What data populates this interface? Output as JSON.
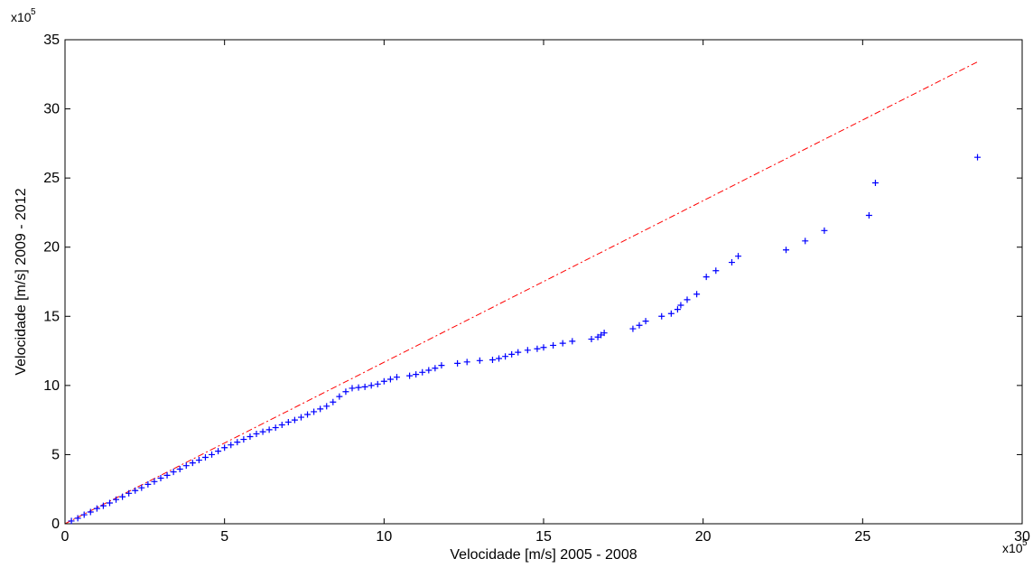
{
  "chart_data": {
    "type": "scatter",
    "title": "",
    "xlabel": "Velocidade [m/s] 2005 - 2008",
    "ylabel": "Velocidade [m/s] 2009 - 2012",
    "x_multiplier": {
      "base": "x10",
      "exp": "5"
    },
    "y_multiplier": {
      "base": "x10",
      "exp": "5"
    },
    "xlim": [
      0,
      30
    ],
    "ylim": [
      0,
      35
    ],
    "xticks": [
      0,
      5,
      10,
      15,
      20,
      25,
      30
    ],
    "yticks": [
      0,
      5,
      10,
      15,
      20,
      25,
      30,
      35
    ],
    "xtick_labels": [
      "0",
      "5",
      "10",
      "15",
      "20",
      "25",
      "30"
    ],
    "ytick_labels": [
      "0",
      "5",
      "10",
      "15",
      "20",
      "25",
      "30",
      "35"
    ],
    "grid": false,
    "colors": {
      "points": "#0000ff",
      "reference_line": "#ff0000",
      "axis": "#000000"
    },
    "reference_line": {
      "style": "dash-dot",
      "x": [
        0,
        28.6
      ],
      "y": [
        0,
        33.4
      ]
    },
    "series": [
      {
        "marker": "plus",
        "x": [
          0.2,
          0.4,
          0.6,
          0.8,
          1.0,
          1.2,
          1.4,
          1.6,
          1.8,
          2.0,
          2.2,
          2.4,
          2.6,
          2.8,
          3.0,
          3.2,
          3.4,
          3.6,
          3.8,
          4.0,
          4.2,
          4.4,
          4.6,
          4.8,
          5.0,
          5.2,
          5.4,
          5.6,
          5.8,
          6.0,
          6.2,
          6.4,
          6.6,
          6.8,
          7.0,
          7.2,
          7.4,
          7.6,
          7.8,
          8.0,
          8.2,
          8.4,
          8.6,
          8.8,
          9.0,
          9.2,
          9.4,
          9.6,
          9.8,
          10.0,
          10.2,
          10.4,
          10.8,
          11.0,
          11.2,
          11.4,
          11.6,
          11.8,
          12.3,
          12.6,
          13.0,
          13.4,
          13.6,
          13.8,
          14.0,
          14.2,
          14.5,
          14.8,
          15.0,
          15.3,
          15.6,
          15.9,
          16.5,
          16.7,
          16.8,
          16.9,
          17.8,
          18.0,
          18.2,
          18.7,
          19.0,
          19.2,
          19.3,
          19.5,
          19.8,
          20.1,
          20.4,
          20.9,
          21.1,
          22.6,
          23.2,
          23.8,
          25.2,
          25.4,
          28.6
        ],
        "y": [
          0.2,
          0.4,
          0.65,
          0.85,
          1.1,
          1.3,
          1.5,
          1.75,
          1.95,
          2.2,
          2.4,
          2.6,
          2.85,
          3.05,
          3.3,
          3.5,
          3.75,
          3.95,
          4.2,
          4.4,
          4.6,
          4.8,
          5.0,
          5.25,
          5.5,
          5.7,
          5.9,
          6.1,
          6.3,
          6.5,
          6.65,
          6.8,
          6.95,
          7.15,
          7.35,
          7.5,
          7.7,
          7.9,
          8.1,
          8.3,
          8.5,
          8.8,
          9.2,
          9.55,
          9.8,
          9.85,
          9.9,
          10.0,
          10.1,
          10.3,
          10.45,
          10.6,
          10.7,
          10.8,
          10.95,
          11.1,
          11.25,
          11.45,
          11.6,
          11.7,
          11.8,
          11.85,
          11.95,
          12.1,
          12.25,
          12.4,
          12.55,
          12.65,
          12.75,
          12.9,
          13.05,
          13.2,
          13.35,
          13.5,
          13.65,
          13.8,
          14.1,
          14.35,
          14.65,
          15.0,
          15.2,
          15.5,
          15.8,
          16.2,
          16.6,
          17.85,
          18.3,
          18.9,
          19.35,
          19.8,
          20.45,
          21.2,
          22.3,
          24.65,
          26.5
        ]
      }
    ]
  }
}
